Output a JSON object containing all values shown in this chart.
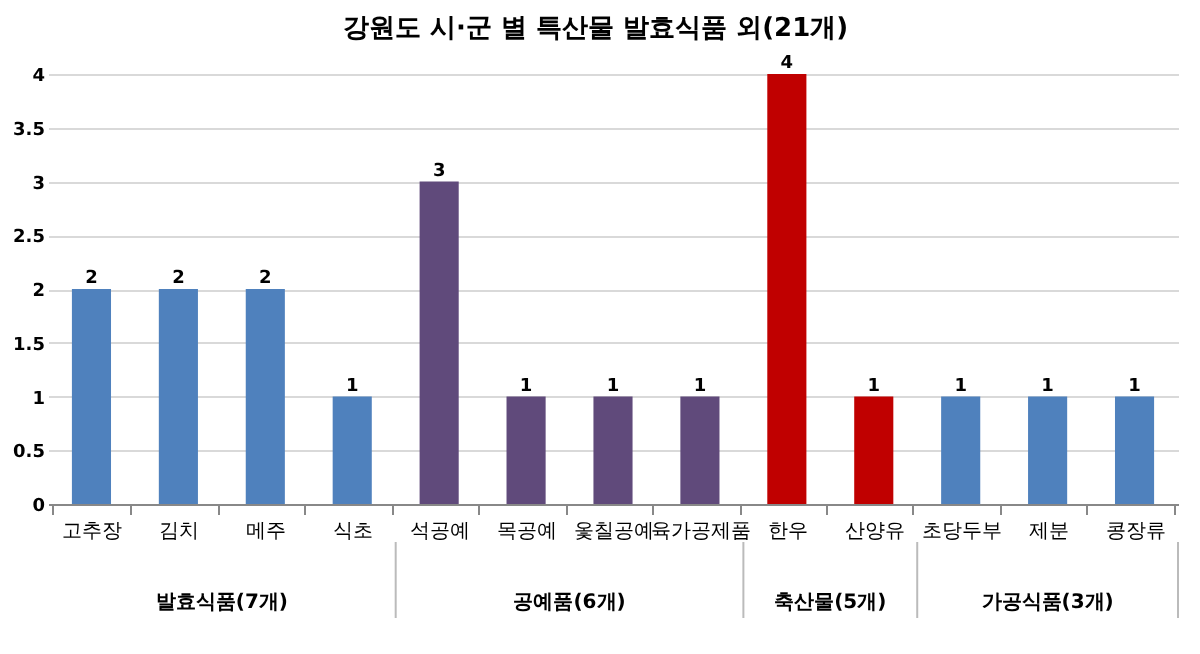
{
  "chart_data": {
    "type": "bar",
    "title": "강원도 시·군 별 특산물 발효식품 외(21개)",
    "categories": [
      "고추장",
      "김치",
      "메주",
      "식초",
      "석공예",
      "목공예",
      "옻칠공예",
      "육가공제품",
      "한우",
      "산양유",
      "초당두부",
      "제분",
      "콩장류"
    ],
    "values": [
      2,
      2,
      2,
      1,
      3,
      1,
      1,
      1,
      4,
      1,
      1,
      1,
      1
    ],
    "colors": [
      "#4f81bd",
      "#4f81bd",
      "#4f81bd",
      "#4f81bd",
      "#604a7b",
      "#604a7b",
      "#604a7b",
      "#604a7b",
      "#c00000",
      "#c00000",
      "#4f81bd",
      "#4f81bd",
      "#4f81bd"
    ],
    "ylim": [
      0,
      4
    ],
    "yticks": [
      0,
      0.5,
      1,
      1.5,
      2,
      2.5,
      3,
      3.5,
      4
    ],
    "grid": "y",
    "data_labels": true,
    "annotations": [
      "발효식품(7개)",
      "공예품(6개)",
      "축산물(5개)",
      "가공식품(3개)"
    ]
  }
}
